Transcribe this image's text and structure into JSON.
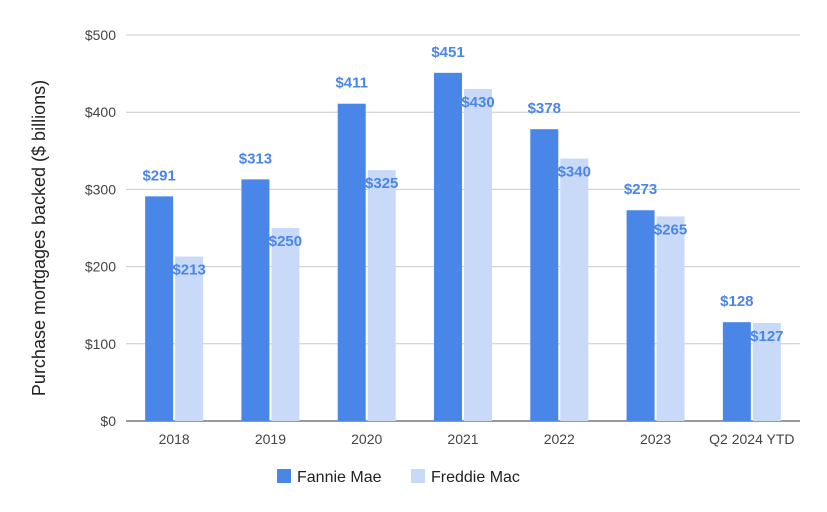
{
  "chart_data": {
    "type": "bar",
    "ylabel": "Purchase mortgages backed ($ billions)",
    "categories": [
      "2018",
      "2019",
      "2020",
      "2021",
      "2022",
      "2023",
      "Q2 2024 YTD"
    ],
    "series": [
      {
        "name": "Fannie Mae",
        "color": "#4a86e8",
        "values": [
          291,
          313,
          411,
          451,
          378,
          273,
          128
        ],
        "labels": [
          "$291",
          "$313",
          "$411",
          "$451",
          "$378",
          "$273",
          "$128"
        ]
      },
      {
        "name": "Freddie Mac",
        "color": "#c9daf8",
        "values": [
          213,
          250,
          325,
          430,
          340,
          265,
          127
        ],
        "labels": [
          "$213",
          "$250",
          "$325",
          "$430",
          "$340",
          "$265",
          "$127"
        ]
      }
    ],
    "ylim": [
      0,
      500
    ],
    "yticks": [
      0,
      100,
      200,
      300,
      400,
      500
    ],
    "ytick_labels": [
      "$0",
      "$100",
      "$200",
      "$300",
      "$400",
      "$500"
    ],
    "grid": true,
    "legend": "bottom",
    "data_label_color": "#4a86e8"
  }
}
